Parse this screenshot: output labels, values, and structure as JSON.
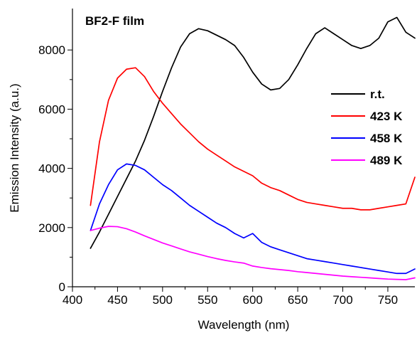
{
  "chart_data": {
    "type": "line",
    "title": "BF2-F film",
    "xlabel": "Wavelength (nm)",
    "ylabel": "Emission Intensity (a.u.)",
    "xlim": [
      400,
      780
    ],
    "ylim": [
      0,
      9400
    ],
    "xticks": [
      400,
      450,
      500,
      550,
      600,
      650,
      700,
      750
    ],
    "yticks": [
      0,
      2000,
      4000,
      6000,
      8000
    ],
    "grid": false,
    "legend_position": "right",
    "series": [
      {
        "name": "r.t.",
        "color": "#000000",
        "x": [
          420,
          430,
          440,
          450,
          460,
          470,
          480,
          490,
          500,
          510,
          520,
          530,
          540,
          550,
          560,
          570,
          580,
          590,
          600,
          610,
          620,
          630,
          640,
          650,
          660,
          670,
          680,
          690,
          700,
          710,
          720,
          730,
          740,
          750,
          760,
          770,
          780
        ],
        "y": [
          1300,
          1850,
          2450,
          3050,
          3650,
          4250,
          4950,
          5750,
          6600,
          7400,
          8100,
          8550,
          8720,
          8650,
          8500,
          8350,
          8150,
          7750,
          7250,
          6850,
          6650,
          6700,
          7000,
          7500,
          8050,
          8550,
          8750,
          8550,
          8350,
          8150,
          8050,
          8150,
          8400,
          8950,
          9100,
          8600,
          8400
        ]
      },
      {
        "name": "423 K",
        "color": "#ff0000",
        "x": [
          420,
          430,
          440,
          450,
          460,
          470,
          480,
          490,
          500,
          510,
          520,
          530,
          540,
          550,
          560,
          570,
          580,
          590,
          600,
          610,
          620,
          630,
          640,
          650,
          660,
          670,
          680,
          690,
          700,
          710,
          720,
          730,
          740,
          750,
          760,
          770,
          780
        ],
        "y": [
          2750,
          4900,
          6300,
          7050,
          7350,
          7400,
          7100,
          6600,
          6200,
          5850,
          5500,
          5200,
          4900,
          4650,
          4450,
          4250,
          4050,
          3900,
          3750,
          3500,
          3350,
          3250,
          3100,
          2950,
          2850,
          2800,
          2750,
          2700,
          2650,
          2650,
          2600,
          2600,
          2650,
          2700,
          2750,
          2800,
          3700
        ]
      },
      {
        "name": "458 K",
        "color": "#0000ff",
        "x": [
          420,
          430,
          440,
          450,
          460,
          470,
          480,
          490,
          500,
          510,
          520,
          530,
          540,
          550,
          560,
          570,
          580,
          590,
          600,
          610,
          620,
          630,
          640,
          650,
          660,
          670,
          680,
          690,
          700,
          710,
          720,
          730,
          740,
          750,
          760,
          770,
          780
        ],
        "y": [
          1900,
          2800,
          3450,
          3950,
          4150,
          4100,
          3950,
          3700,
          3450,
          3250,
          3000,
          2750,
          2550,
          2350,
          2150,
          2000,
          1800,
          1650,
          1800,
          1500,
          1350,
          1250,
          1150,
          1050,
          950,
          900,
          850,
          800,
          750,
          700,
          650,
          600,
          550,
          500,
          450,
          450,
          600
        ]
      },
      {
        "name": "489 K",
        "color": "#ff00ff",
        "x": [
          420,
          430,
          440,
          450,
          460,
          470,
          480,
          490,
          500,
          510,
          520,
          530,
          540,
          550,
          560,
          570,
          580,
          590,
          600,
          610,
          620,
          630,
          640,
          650,
          660,
          670,
          680,
          690,
          700,
          710,
          720,
          730,
          740,
          750,
          760,
          770,
          780
        ],
        "y": [
          1900,
          1980,
          2040,
          2030,
          1960,
          1850,
          1720,
          1600,
          1480,
          1380,
          1280,
          1180,
          1100,
          1020,
          950,
          890,
          840,
          800,
          700,
          650,
          610,
          580,
          550,
          510,
          480,
          450,
          420,
          390,
          360,
          340,
          320,
          300,
          280,
          260,
          250,
          240,
          300
        ]
      }
    ]
  }
}
